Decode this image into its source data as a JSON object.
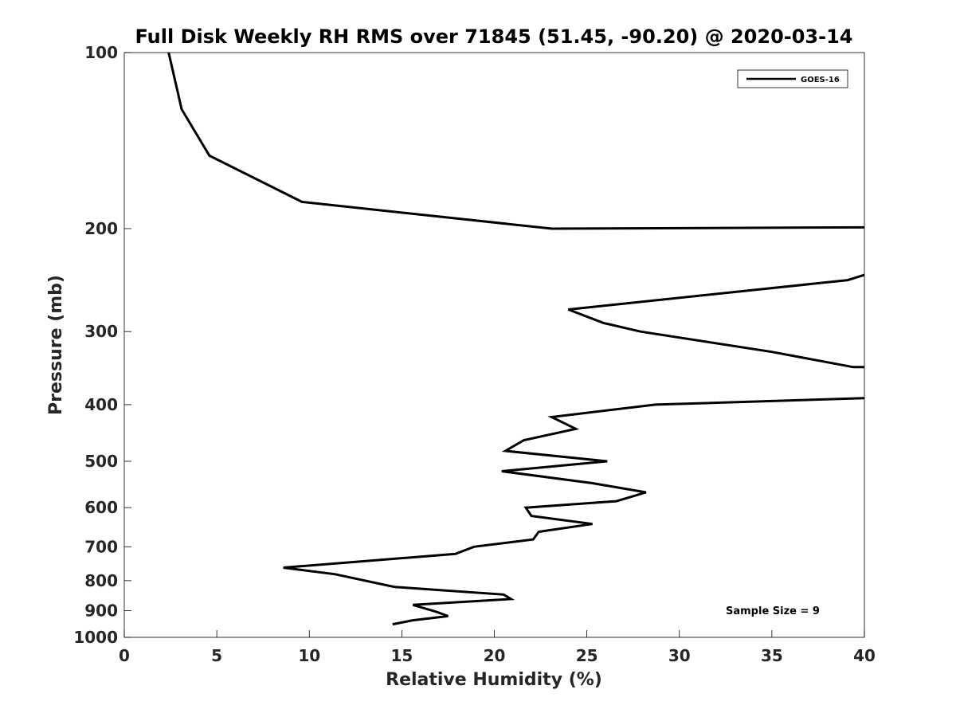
{
  "chart_data": {
    "type": "line",
    "title": "Full Disk Weekly RH RMS over 71845 (51.45, -90.20) @ 2020-03-14",
    "xlabel": "Relative Humidity (%)",
    "ylabel": "Pressure (mb)",
    "xlim": [
      0,
      40
    ],
    "ylim": [
      100,
      1000
    ],
    "yscale": "log",
    "y_reversed": true,
    "xticks": [
      0,
      5,
      10,
      15,
      20,
      25,
      30,
      35,
      40
    ],
    "yticks": [
      100,
      200,
      300,
      400,
      500,
      600,
      700,
      800,
      900,
      1000
    ],
    "legend": {
      "position": "top-right",
      "entries": [
        "GOES-16"
      ]
    },
    "annotation": "Sample Size = 9",
    "grid": false,
    "series": [
      {
        "name": "GOES-16",
        "color": "#000000",
        "segments": [
          [
            {
              "x": 2.4,
              "y": 100
            },
            {
              "x": 3.1,
              "y": 125
            },
            {
              "x": 4.6,
              "y": 150
            },
            {
              "x": 9.6,
              "y": 180
            },
            {
              "x": 23.1,
              "y": 200
            },
            {
              "x": 40.0,
              "y": 199
            }
          ],
          [
            {
              "x": 40.0,
              "y": 240
            },
            {
              "x": 39.1,
              "y": 245
            },
            {
              "x": 24.0,
              "y": 275
            },
            {
              "x": 25.9,
              "y": 290
            },
            {
              "x": 27.9,
              "y": 300
            },
            {
              "x": 35.0,
              "y": 325
            },
            {
              "x": 39.4,
              "y": 345
            },
            {
              "x": 40.0,
              "y": 345
            }
          ],
          [
            {
              "x": 40.0,
              "y": 390
            },
            {
              "x": 28.7,
              "y": 400
            },
            {
              "x": 23.1,
              "y": 420
            },
            {
              "x": 24.4,
              "y": 440
            },
            {
              "x": 21.6,
              "y": 460
            },
            {
              "x": 20.6,
              "y": 480
            },
            {
              "x": 26.1,
              "y": 500
            },
            {
              "x": 20.4,
              "y": 520
            },
            {
              "x": 25.3,
              "y": 545
            },
            {
              "x": 28.2,
              "y": 565
            },
            {
              "x": 26.6,
              "y": 585
            },
            {
              "x": 21.7,
              "y": 600
            },
            {
              "x": 22.0,
              "y": 620
            },
            {
              "x": 25.3,
              "y": 640
            },
            {
              "x": 22.4,
              "y": 660
            },
            {
              "x": 22.1,
              "y": 680
            },
            {
              "x": 18.9,
              "y": 700
            },
            {
              "x": 17.9,
              "y": 720
            },
            {
              "x": 8.6,
              "y": 760
            },
            {
              "x": 11.4,
              "y": 780
            },
            {
              "x": 14.6,
              "y": 820
            },
            {
              "x": 20.5,
              "y": 845
            },
            {
              "x": 20.9,
              "y": 860
            },
            {
              "x": 15.6,
              "y": 880
            },
            {
              "x": 16.9,
              "y": 905
            },
            {
              "x": 17.5,
              "y": 920
            },
            {
              "x": 15.6,
              "y": 935
            },
            {
              "x": 14.5,
              "y": 950
            }
          ]
        ]
      }
    ]
  }
}
